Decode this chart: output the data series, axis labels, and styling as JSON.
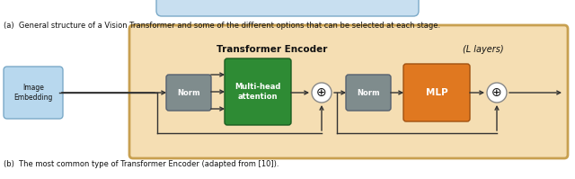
{
  "fig_width": 6.4,
  "fig_height": 1.99,
  "dpi": 100,
  "top_text": "(a)  General structure of a Vision Transformer and some of the different options that can be selected at each stage.",
  "bottom_text": "(b)  The most common type of Transformer Encoder (adapted from [10]).",
  "encoder_title": "Transformer Encoder",
  "encoder_subtitle": "(L layers)",
  "box_bg": "#f5deb3",
  "box_edge": "#c8a050",
  "image_embed_color": "#b8d8ee",
  "image_embed_edge": "#7baac8",
  "norm_color": "#7f8c8d",
  "norm_edge": "#556070",
  "multihead_color": "#2e8b34",
  "multihead_edge": "#1a5c20",
  "mlp_color": "#e07820",
  "mlp_edge": "#a05010",
  "circle_edge": "#888888",
  "arrow_color": "#333333",
  "text_white": "#ffffff",
  "text_dark": "#111111",
  "top_blue_shape": "#c8dff0"
}
